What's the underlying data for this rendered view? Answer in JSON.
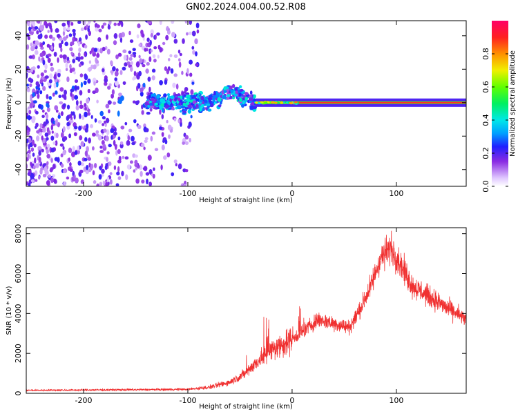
{
  "title": "GN02.2024.004.00.52.R08",
  "chart_data": [
    {
      "type": "heatmap",
      "name": "spectrogram",
      "xlabel": "Height of straight line (km)",
      "ylabel": "Frequency (Hz)",
      "xlim": [
        -255,
        167
      ],
      "ylim": [
        -50,
        49
      ],
      "xticks": [
        -200,
        -100,
        0,
        100
      ],
      "xtick_labels": [
        "-200",
        "-100",
        "0",
        "100"
      ],
      "yticks": [
        -40,
        -20,
        0,
        20,
        40
      ],
      "ytick_labels": [
        "-40",
        "-20",
        "0",
        "20",
        "40"
      ],
      "colorbar": {
        "label": "Normalized spectral amplitude",
        "range": [
          0,
          1
        ],
        "ticks": [
          0.0,
          0.2,
          0.4,
          0.6,
          0.8
        ],
        "tick_labels": [
          "0.0",
          "0.2",
          "0.4",
          "0.6",
          "0.8"
        ]
      },
      "regions": [
        {
          "x_range": [
            -255,
            -90
          ],
          "freq_spread": 50,
          "amplitude": [
            0.05,
            0.3
          ],
          "description_of_pattern": "diffuse"
        },
        {
          "x_range": [
            -140,
            -40
          ],
          "freq_center": 3,
          "freq_spread": 8,
          "amplitude": [
            0.15,
            0.45
          ]
        },
        {
          "x_range": [
            -35,
            167
          ],
          "freq_center": 0,
          "freq_spread": 1.5,
          "amplitude": [
            0.8,
            1.0
          ]
        }
      ]
    },
    {
      "type": "line",
      "name": "snr",
      "xlabel": "Height of straight line (km)",
      "ylabel": "SNR (10 * v/v)",
      "xlim": [
        -255,
        167
      ],
      "ylim": [
        0,
        8300
      ],
      "xticks": [
        -200,
        -100,
        0,
        100
      ],
      "xtick_labels": [
        "-200",
        "-100",
        "0",
        "100"
      ],
      "yticks": [
        0,
        2000,
        4000,
        6000,
        8000
      ],
      "ytick_labels": [
        "0",
        "2000",
        "4000",
        "6000",
        "8000"
      ],
      "color": "#f03030",
      "envelope": {
        "x": [
          -255,
          -150,
          -100,
          -80,
          -60,
          -45,
          -35,
          -25,
          -15,
          0,
          15,
          25,
          40,
          55,
          65,
          75,
          85,
          95,
          105,
          115,
          130,
          145,
          167
        ],
        "y": [
          150,
          180,
          200,
          300,
          550,
          1000,
          1500,
          2000,
          2300,
          2700,
          3300,
          3700,
          3500,
          3300,
          4200,
          5300,
          6800,
          7300,
          6400,
          5400,
          4900,
          4400,
          3700
        ]
      }
    }
  ]
}
